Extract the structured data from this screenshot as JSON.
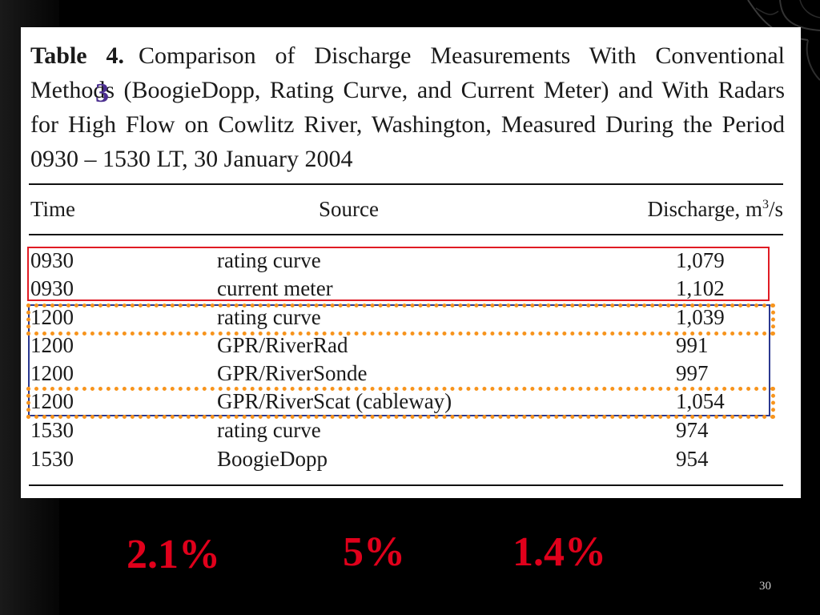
{
  "caption": {
    "label": "Table 4.",
    "text": "Comparison of Discharge Measurements With Conventional Methods (BoogieDopp, Rating Curve, and Current Meter) and With Radars for High Flow on Cowlitz River, Washington, Measured During the Period 0930 – 1530 LT, 30 January 2004"
  },
  "table": {
    "headers": {
      "time": "Time",
      "source": "Source",
      "discharge_prefix": "Discharge, m",
      "discharge_exp": "3",
      "discharge_suffix": "/s"
    },
    "rows": [
      {
        "time": "0930",
        "source": "rating curve",
        "discharge": "1,079"
      },
      {
        "time": "0930",
        "source": "current meter",
        "discharge": "1,102"
      },
      {
        "time": "1200",
        "source": "rating curve",
        "discharge": "1,039"
      },
      {
        "time": "1200",
        "source": "GPR/RiverRad",
        "discharge": "991"
      },
      {
        "time": "1200",
        "source": "GPR/RiverSonde",
        "discharge": "997"
      },
      {
        "time": "1200",
        "source": "GPR/RiverScat (cableway)",
        "discharge": "1,054"
      },
      {
        "time": "1530",
        "source": "rating curve",
        "discharge": "974"
      },
      {
        "time": "1530",
        "source": "BoogieDopp",
        "discharge": "954"
      }
    ]
  },
  "marker": "3",
  "percentages": [
    "2.1%",
    "5%",
    "1.4%"
  ],
  "page_number": "30",
  "colors": {
    "highlight_red": "#e01b24",
    "highlight_blue": "#2b3990",
    "highlight_orange": "#f7941d",
    "percent_text": "#e0001b"
  }
}
